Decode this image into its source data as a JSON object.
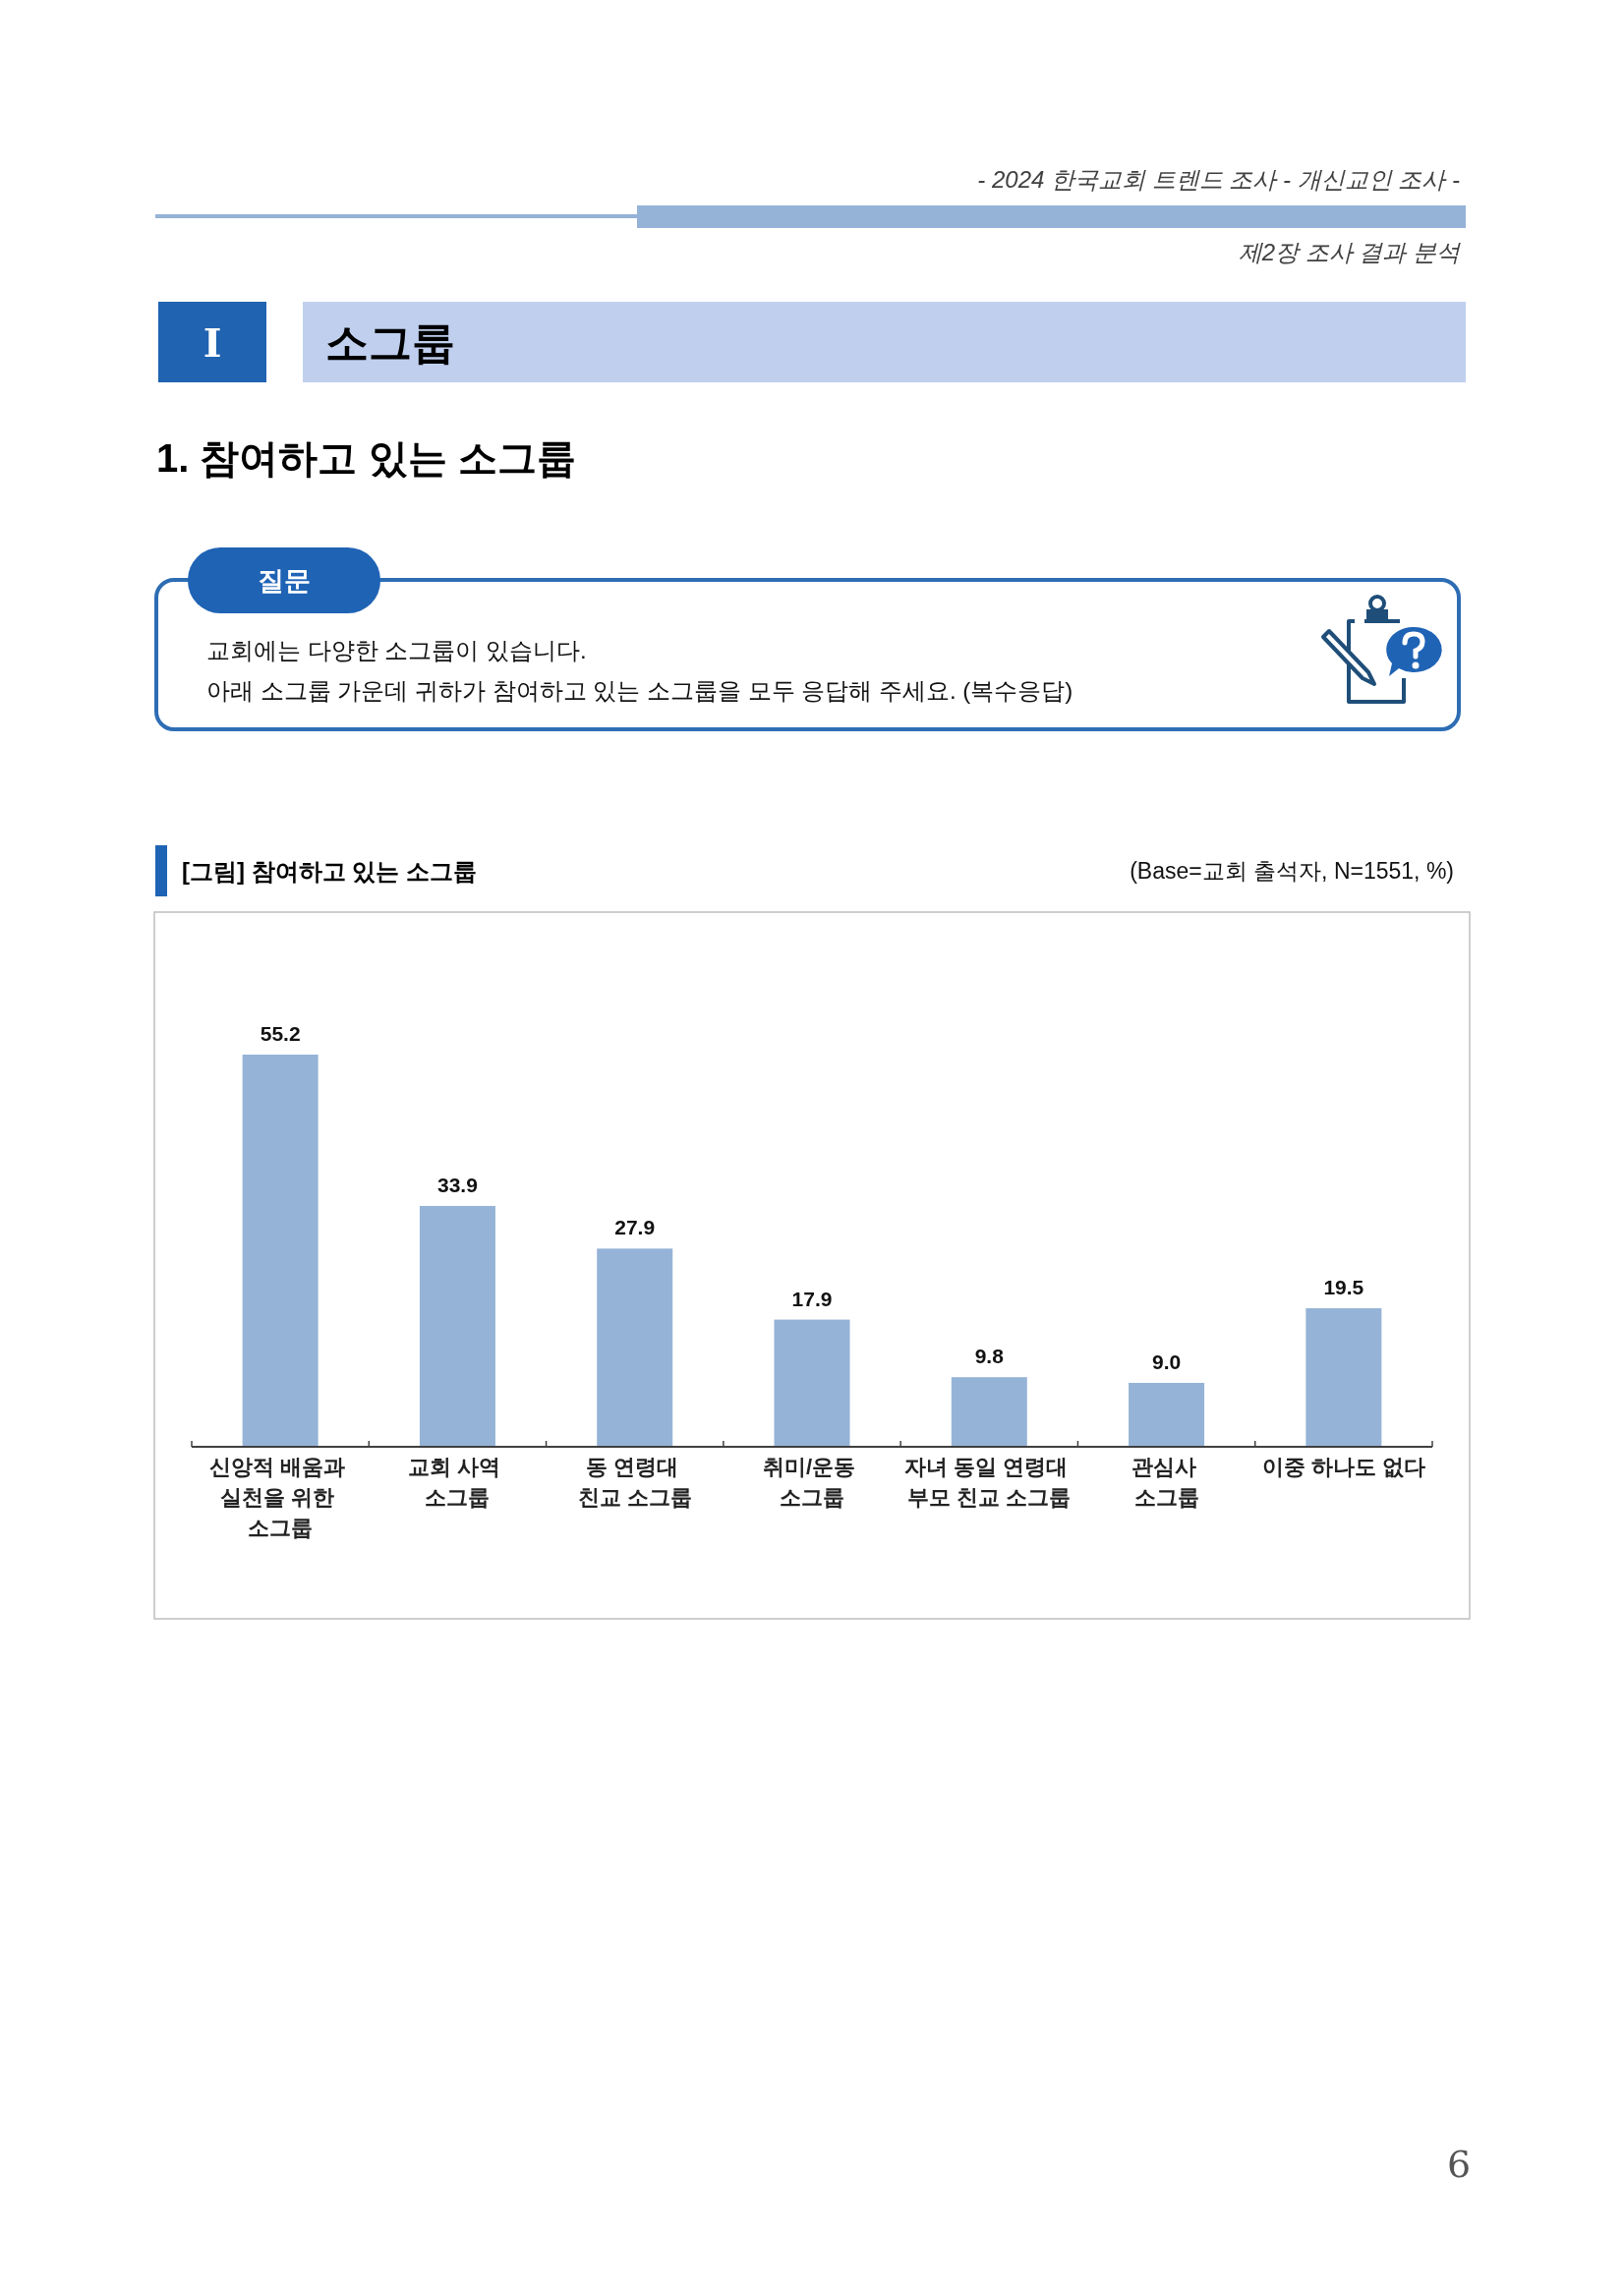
{
  "chart_data": {
    "type": "bar",
    "title": "[그림] 참여하고 있는 소그룹",
    "subtitle": "(Base=교회 출석자, N=1551, %)",
    "categories": [
      "신앙적 배움과\n실천을 위한\n소그룹",
      "교회 사역\n소그룹",
      "동 연령대\n친교 소그룹",
      "취미/운동\n소그룹",
      "자녀 동일 연령대\n부모 친교 소그룹",
      "관심사\n소그룹",
      "이중 하나도 없다"
    ],
    "values": [
      55.2,
      33.9,
      27.9,
      17.9,
      9.8,
      9.0,
      19.5
    ],
    "value_labels": [
      "55.2",
      "33.9",
      "27.9",
      "17.9",
      "9.8",
      "9.0",
      "19.5"
    ],
    "color": "#95b3d7",
    "annotations": [
      "- 2024 한국교회 트렌드 조사 - 개신교인 조사 -",
      "제2장 조사 결과 분석",
      "I",
      "소그룹",
      "1. 참여하고 있는 소그룹",
      "질문",
      "교회에는 다양한 소그룹이 있습니다.",
      "아래 소그룹 가운데 귀하가 참여하고 있는 소그룹을 모두 응답해 주세요. (복수응답)",
      "6"
    ]
  }
}
